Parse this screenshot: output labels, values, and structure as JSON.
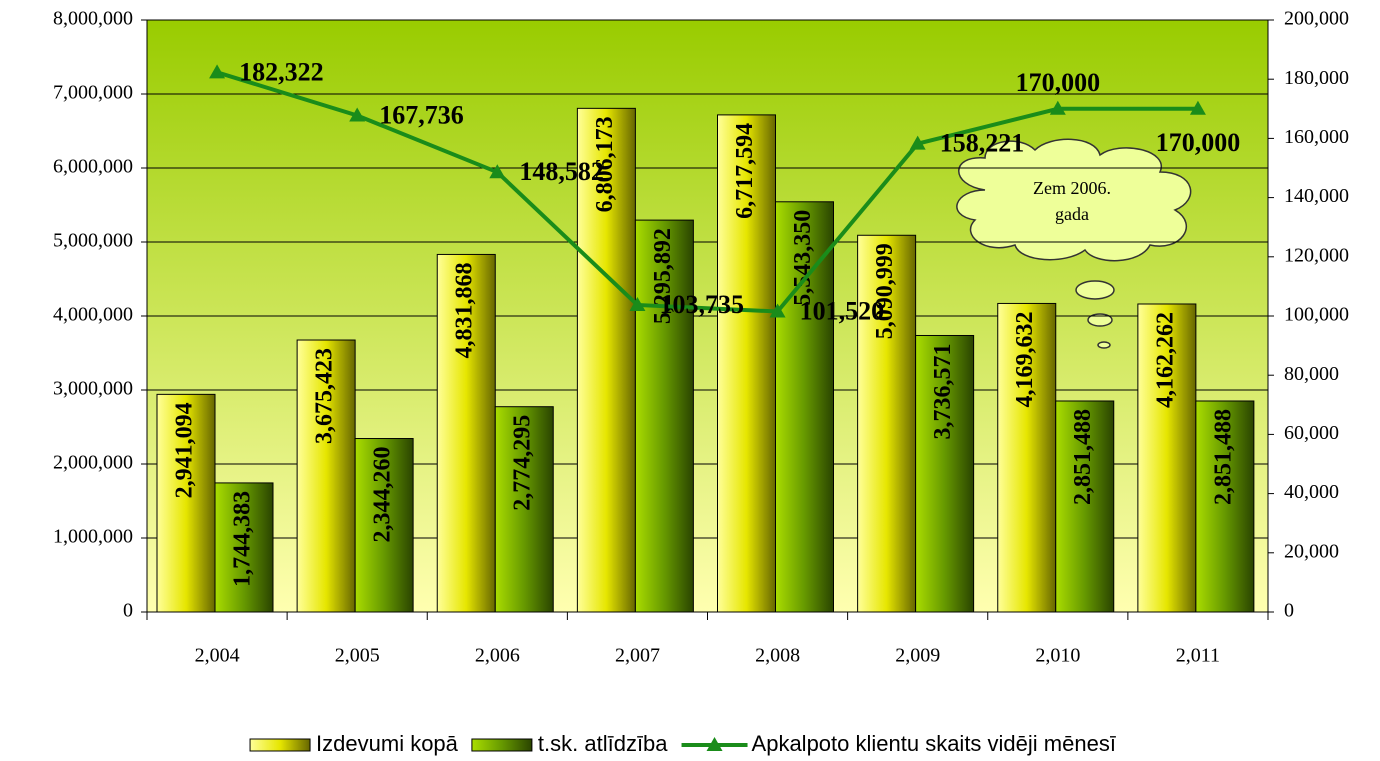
{
  "chart_data": {
    "type": "bar",
    "categories": [
      "2,004",
      "2,005",
      "2,006",
      "2,007",
      "2,008",
      "2,009",
      "2,010",
      "2,011"
    ],
    "series": [
      {
        "name": "Izdevumi kopā",
        "color": "#e6e600",
        "values": [
          2941094,
          3675423,
          4831868,
          6806173,
          6717594,
          5090999,
          4169632,
          4162262
        ],
        "value_labels": [
          "2,941,094",
          "3,675,423",
          "4,831,868",
          "6,806,173",
          "6,717,594",
          "5,090,999",
          "4,169,632",
          "4,162,262"
        ]
      },
      {
        "name": "t.sk. atlīdzība",
        "color": "#669900",
        "values": [
          1744383,
          2344260,
          2774295,
          5295892,
          5543350,
          3736571,
          2851488,
          2851488
        ],
        "value_labels": [
          "1,744,383",
          "2,344,260",
          "2,774,295",
          "5,295,892",
          "5,543,350",
          "3,736,571",
          "2,851,488",
          "2,851,488"
        ]
      },
      {
        "name": "Apkalpoto klientu skaits vidēji mēnesī",
        "type": "line",
        "axis": "y2",
        "color": "#1a8c1a",
        "values": [
          182322,
          167736,
          148582,
          103735,
          101520,
          158221,
          170000,
          170000
        ],
        "value_labels": [
          "182,322",
          "167,736",
          "148,582",
          "103,735",
          "101,520",
          "158,221",
          "170,000",
          "170,000"
        ]
      }
    ],
    "ylim": [
      0,
      8000000
    ],
    "yticks": [
      0,
      {
        "value": 1000000,
        "label": "1,000,000"
      },
      {
        "value": 2000000,
        "label": "2,000,000"
      },
      {
        "value": 3000000,
        "label": "3,000,000"
      },
      {
        "value": 4000000,
        "label": "4,000,000"
      },
      {
        "value": 5000000,
        "label": "5,000,000"
      },
      {
        "value": 6000000,
        "label": "6,000,000"
      },
      {
        "value": 7000000,
        "label": "7,000,000"
      },
      {
        "value": 8000000,
        "label": "8,000,000"
      }
    ],
    "y2lim": [
      0,
      200000
    ],
    "y2ticks": [
      0,
      {
        "value": 20000,
        "label": "20,000"
      },
      {
        "value": 40000,
        "label": "40,000"
      },
      {
        "value": 60000,
        "label": "60,000"
      },
      {
        "value": 80000,
        "label": "80,000"
      },
      {
        "value": 100000,
        "label": "100,000"
      },
      {
        "value": 120000,
        "label": "120,000"
      },
      {
        "value": 140000,
        "label": "140,000"
      },
      {
        "value": 160000,
        "label": "160,000"
      },
      {
        "value": 180000,
        "label": "180,000"
      },
      {
        "value": 200000,
        "label": "200,000"
      }
    ],
    "grid": true,
    "legend": "bottom",
    "annotation": [
      "Zem 2006.",
      "gada"
    ]
  }
}
